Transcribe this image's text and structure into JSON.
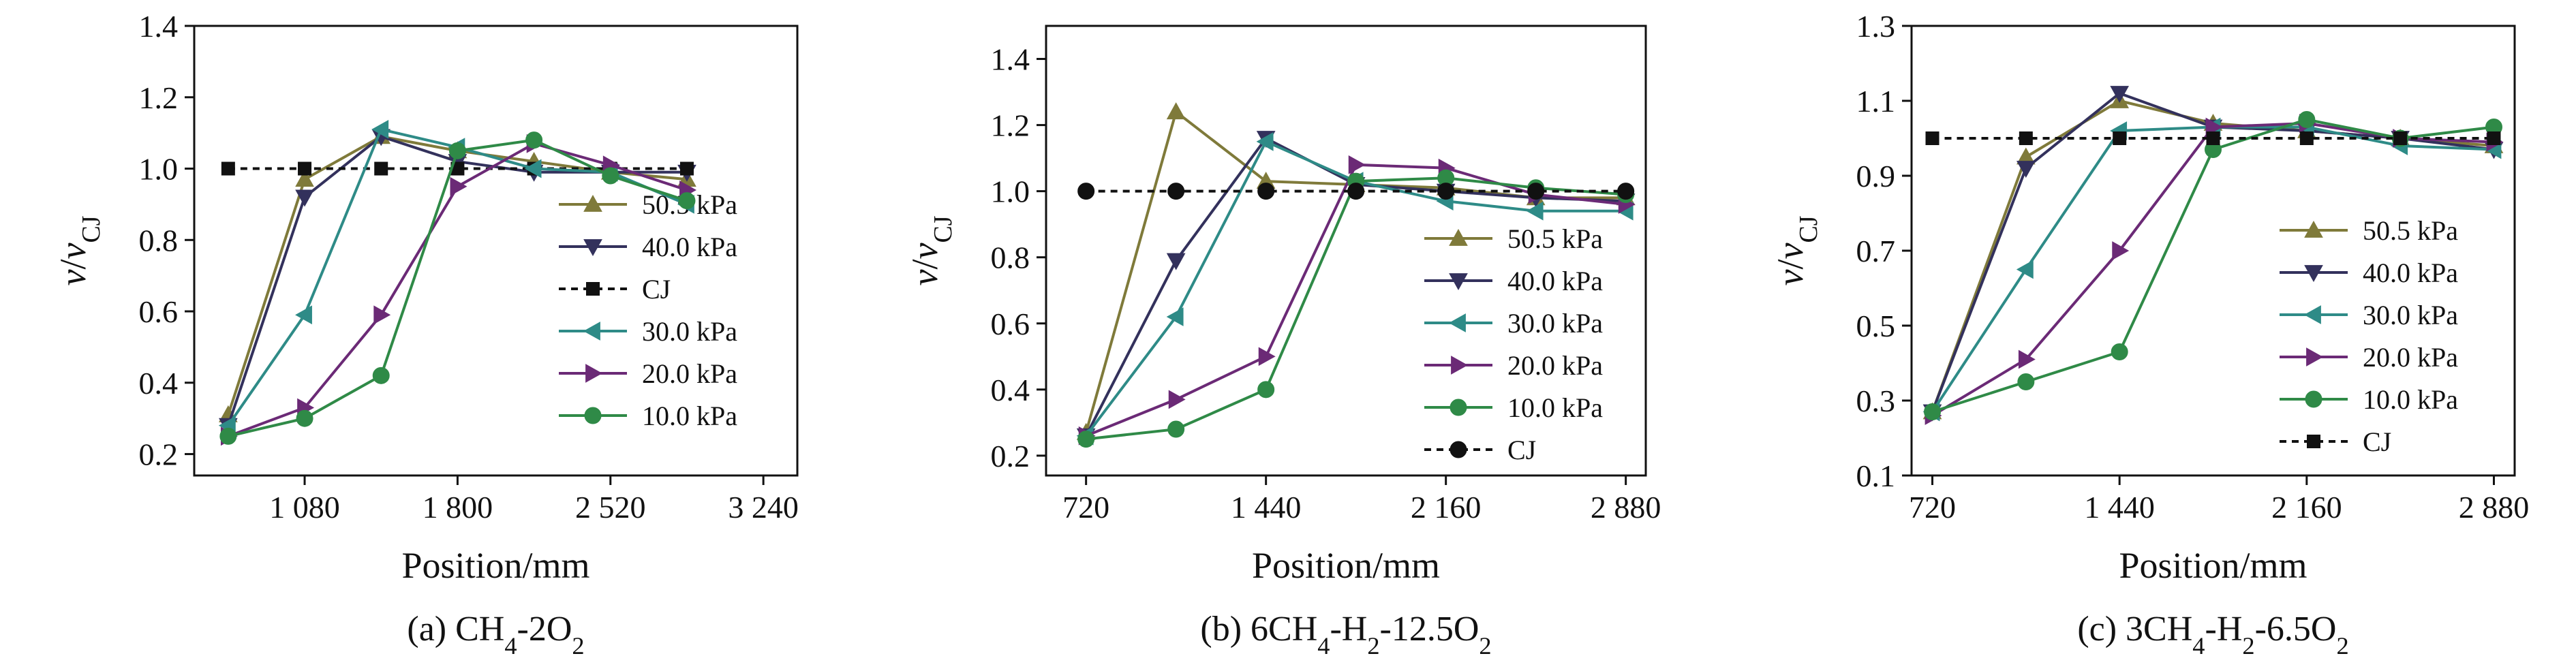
{
  "colors": {
    "50.5 kPa": "#7f7a3a",
    "40.0 kPa": "#33315c",
    "30.0 kPa": "#2e8b87",
    "20.0 kPa": "#6b2a76",
    "10.0 kPa": "#2f8a47",
    "CJ": "#111111"
  },
  "chart_data": [
    {
      "type": "line",
      "caption": {
        "prefix": "(a) CH",
        "sub1": "4",
        "mid1": "-2O",
        "sub2": "2",
        "mid2": "",
        "sub3": "",
        "mid3": ""
      },
      "xlabel": "Position/mm",
      "ylabel": {
        "v": "v",
        "slash": "/",
        "v2": "v",
        "sub": "CJ"
      },
      "xlim": [
        560,
        3400
      ],
      "ylim": [
        0.14,
        1.4
      ],
      "xticks": [
        1080,
        1800,
        2520,
        3240
      ],
      "xtick_labels": [
        "1 080",
        "1 800",
        "2 520",
        "3 240"
      ],
      "yticks": [
        0.2,
        0.4,
        0.6,
        0.8,
        1.0,
        1.2,
        1.4
      ],
      "ytick_labels": [
        "0.2",
        "0.4",
        "0.6",
        "0.8",
        "1.0",
        "1.2",
        "1.4"
      ],
      "legend_position": "right",
      "series": [
        {
          "name": "50.5 kPa",
          "marker": "triangle-up",
          "x": [
            720,
            1080,
            1440,
            1800,
            2160,
            2520,
            2880
          ],
          "y": [
            0.31,
            0.97,
            1.09,
            1.05,
            1.02,
            0.99,
            0.97
          ]
        },
        {
          "name": "40.0 kPa",
          "marker": "triangle-down",
          "x": [
            720,
            1080,
            1440,
            1800,
            2160,
            2520,
            2880
          ],
          "y": [
            0.28,
            0.92,
            1.09,
            1.02,
            0.99,
            0.99,
            0.99
          ]
        },
        {
          "name": "CJ",
          "marker": "square",
          "dashed": true,
          "x": [
            720,
            1080,
            1440,
            1800,
            2160,
            2520,
            2880
          ],
          "y": [
            1.0,
            1.0,
            1.0,
            1.0,
            1.0,
            1.0,
            1.0
          ]
        },
        {
          "name": "30.0 kPa",
          "marker": "triangle-left",
          "x": [
            720,
            1080,
            1440,
            1800,
            2160,
            2520,
            2880
          ],
          "y": [
            0.28,
            0.59,
            1.11,
            1.06,
            1.0,
            0.99,
            0.9
          ]
        },
        {
          "name": "20.0 kPa",
          "marker": "triangle-right",
          "x": [
            720,
            1080,
            1440,
            1800,
            2160,
            2520,
            2880
          ],
          "y": [
            0.25,
            0.33,
            0.59,
            0.95,
            1.07,
            1.01,
            0.94
          ]
        },
        {
          "name": "10.0 kPa",
          "marker": "circle",
          "x": [
            720,
            1080,
            1440,
            1800,
            2160,
            2520,
            2880
          ],
          "y": [
            0.25,
            0.3,
            0.42,
            1.05,
            1.08,
            0.98,
            0.91
          ]
        }
      ]
    },
    {
      "type": "line",
      "caption": {
        "prefix": "(b) 6CH",
        "sub1": "4",
        "mid1": "-H",
        "sub2": "2",
        "mid2": "-12.5O",
        "sub3": "2",
        "mid3": ""
      },
      "xlabel": "Position/mm",
      "ylabel": {
        "v": "v",
        "slash": "/",
        "v2": "v",
        "sub": "CJ"
      },
      "xlim": [
        560,
        2960
      ],
      "ylim": [
        0.14,
        1.5
      ],
      "xticks": [
        720,
        1440,
        2160,
        2880
      ],
      "xtick_labels": [
        "720",
        "1 440",
        "2 160",
        "2 880"
      ],
      "yticks": [
        0.2,
        0.4,
        0.6,
        0.8,
        1.0,
        1.2,
        1.4
      ],
      "ytick_labels": [
        "0.2",
        "0.4",
        "0.6",
        "0.8",
        "1.0",
        "1.2",
        "1.4"
      ],
      "legend_position": "right",
      "series": [
        {
          "name": "50.5 kPa",
          "marker": "triangle-up",
          "x": [
            720,
            1080,
            1440,
            1800,
            2160,
            2520,
            2880
          ],
          "y": [
            0.27,
            1.24,
            1.03,
            1.02,
            1.01,
            0.98,
            0.98
          ]
        },
        {
          "name": "40.0 kPa",
          "marker": "triangle-down",
          "x": [
            720,
            1080,
            1440,
            1800,
            2160,
            2520,
            2880
          ],
          "y": [
            0.26,
            0.79,
            1.16,
            1.02,
            1.0,
            0.98,
            0.97
          ]
        },
        {
          "name": "30.0 kPa",
          "marker": "triangle-left",
          "x": [
            720,
            1080,
            1440,
            1800,
            2160,
            2520,
            2880
          ],
          "y": [
            0.26,
            0.62,
            1.15,
            1.03,
            0.97,
            0.94,
            0.94
          ]
        },
        {
          "name": "20.0 kPa",
          "marker": "triangle-right",
          "x": [
            720,
            1080,
            1440,
            1800,
            2160,
            2520,
            2880
          ],
          "y": [
            0.26,
            0.37,
            0.5,
            1.08,
            1.07,
            0.99,
            0.96
          ]
        },
        {
          "name": "10.0 kPa",
          "marker": "circle",
          "x": [
            720,
            1080,
            1440,
            1800,
            2160,
            2520,
            2880
          ],
          "y": [
            0.25,
            0.28,
            0.4,
            1.03,
            1.04,
            1.01,
            0.99
          ]
        },
        {
          "name": "CJ",
          "marker": "circle",
          "dashed": true,
          "x": [
            720,
            1080,
            1440,
            1800,
            2160,
            2520,
            2880
          ],
          "y": [
            1.0,
            1.0,
            1.0,
            1.0,
            1.0,
            1.0,
            1.0
          ]
        }
      ]
    },
    {
      "type": "line",
      "caption": {
        "prefix": "(c) 3CH",
        "sub1": "4",
        "mid1": "-H",
        "sub2": "2",
        "mid2": "-6.5O",
        "sub3": "2",
        "mid3": ""
      },
      "xlabel": "Position/mm",
      "ylabel": {
        "v": "v",
        "slash": "/",
        "v2": "v",
        "sub": "CJ"
      },
      "xlim": [
        640,
        2960
      ],
      "ylim": [
        0.1,
        1.3
      ],
      "xticks": [
        720,
        1440,
        2160,
        2880
      ],
      "xtick_labels": [
        "720",
        "1 440",
        "2 160",
        "2 880"
      ],
      "yticks": [
        0.1,
        0.3,
        0.5,
        0.7,
        0.9,
        1.1,
        1.3
      ],
      "ytick_labels": [
        "0.1",
        "0.3",
        "0.5",
        "0.7",
        "0.9",
        "1.1",
        "1.3"
      ],
      "legend_position": "right",
      "series": [
        {
          "name": "50.5 kPa",
          "marker": "triangle-up",
          "x": [
            720,
            1080,
            1440,
            1800,
            2160,
            2520,
            2880
          ],
          "y": [
            0.27,
            0.95,
            1.1,
            1.04,
            1.02,
            1.0,
            0.98
          ]
        },
        {
          "name": "40.0 kPa",
          "marker": "triangle-down",
          "x": [
            720,
            1080,
            1440,
            1800,
            2160,
            2520,
            2880
          ],
          "y": [
            0.27,
            0.92,
            1.12,
            1.03,
            1.02,
            1.0,
            0.97
          ]
        },
        {
          "name": "30.0 kPa",
          "marker": "triangle-left",
          "x": [
            720,
            1080,
            1440,
            1800,
            2160,
            2520,
            2880
          ],
          "y": [
            0.27,
            0.65,
            1.02,
            1.03,
            1.03,
            0.98,
            0.97
          ]
        },
        {
          "name": "20.0 kPa",
          "marker": "triangle-right",
          "x": [
            720,
            1080,
            1440,
            1800,
            2160,
            2520,
            2880
          ],
          "y": [
            0.26,
            0.41,
            0.7,
            1.03,
            1.04,
            1.0,
            0.99
          ]
        },
        {
          "name": "10.0 kPa",
          "marker": "circle",
          "x": [
            720,
            1080,
            1440,
            1800,
            2160,
            2520,
            2880
          ],
          "y": [
            0.27,
            0.35,
            0.43,
            0.97,
            1.05,
            1.0,
            1.03
          ]
        },
        {
          "name": "CJ",
          "marker": "square",
          "dashed": true,
          "x": [
            720,
            1080,
            1440,
            1800,
            2160,
            2520,
            2880
          ],
          "y": [
            1.0,
            1.0,
            1.0,
            1.0,
            1.0,
            1.0,
            1.0
          ]
        }
      ]
    }
  ]
}
